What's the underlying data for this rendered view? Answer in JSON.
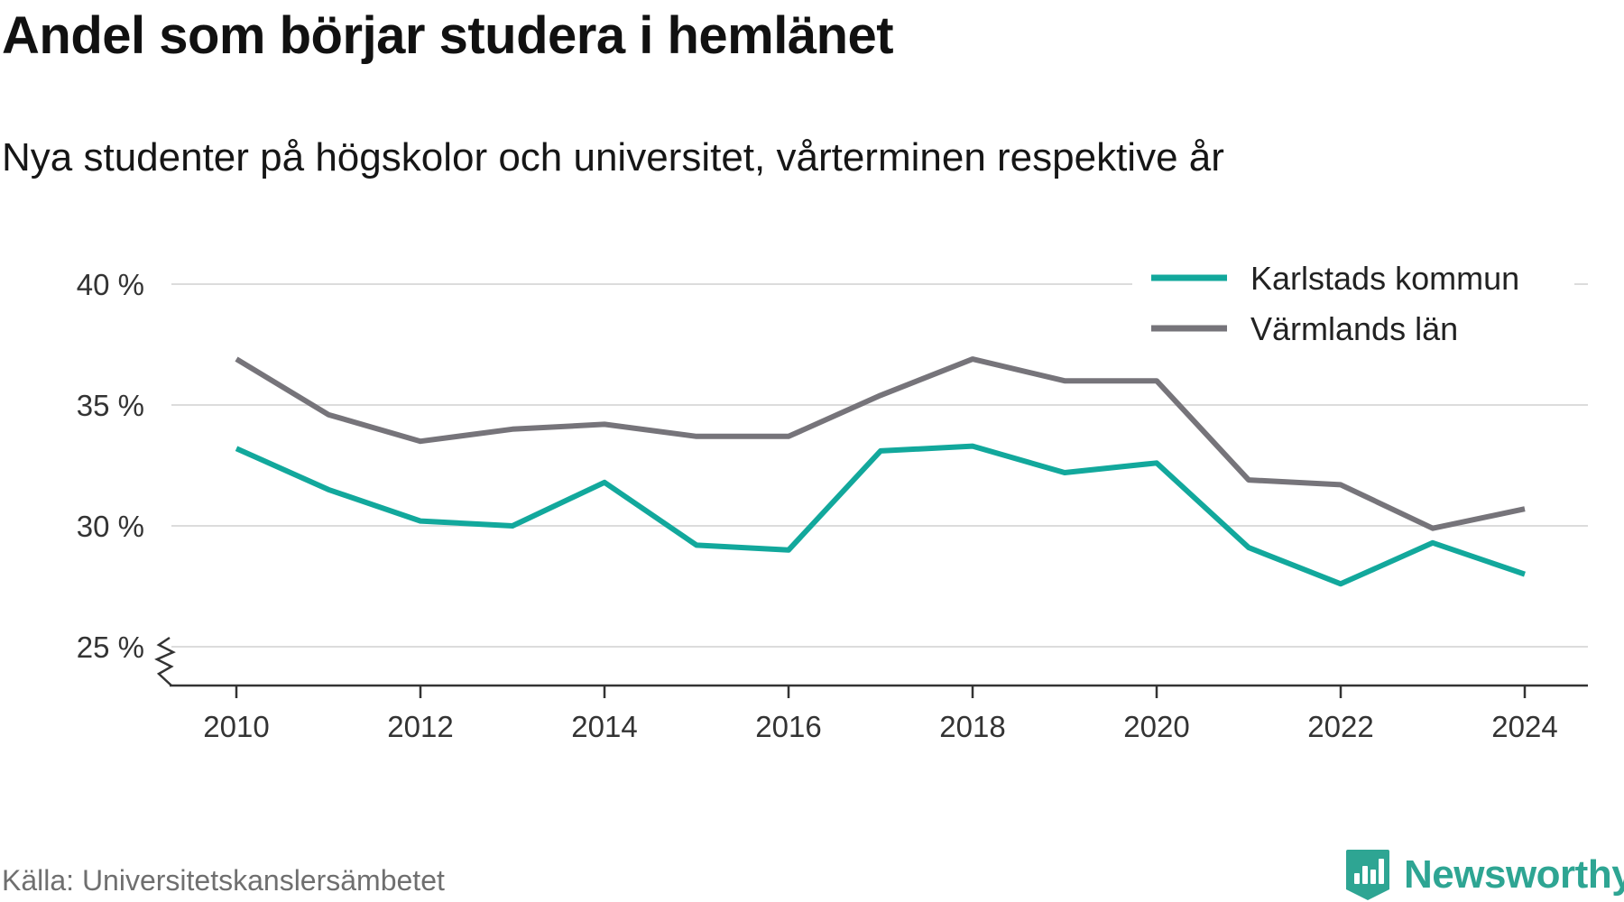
{
  "chart_data": {
    "type": "line",
    "title": "Andel som börjar studera i hemlänet",
    "subtitle": "Nya studenter på högskolor och universitet, vårterminen respektive år",
    "x": [
      2010,
      2011,
      2012,
      2013,
      2014,
      2015,
      2016,
      2017,
      2018,
      2019,
      2020,
      2021,
      2022,
      2023,
      2024
    ],
    "x_ticks": [
      2010,
      2012,
      2014,
      2016,
      2018,
      2020,
      2022,
      2024
    ],
    "y_ticks": [
      25,
      30,
      35,
      40
    ],
    "y_tick_labels": [
      "25 %",
      "30 %",
      "35 %",
      "40 %"
    ],
    "ylim": [
      25,
      40
    ],
    "y_axis_break": true,
    "grid": true,
    "legend_position": "top-right",
    "series": [
      {
        "name": "Karlstads kommun",
        "color": "#12a89c",
        "values": [
          33.2,
          31.5,
          30.2,
          30.0,
          31.8,
          29.2,
          29.0,
          33.1,
          33.3,
          32.2,
          32.6,
          29.1,
          27.6,
          29.3,
          28.0
        ]
      },
      {
        "name": "Värmlands län",
        "color": "#76747a",
        "values": [
          36.9,
          34.6,
          33.5,
          34.0,
          34.2,
          33.7,
          33.7,
          35.4,
          36.9,
          36.0,
          36.0,
          31.9,
          31.7,
          29.9,
          30.7
        ]
      }
    ]
  },
  "source": "Källa: Universitetskanslersämbetet",
  "brand": "Newsworthy",
  "colors": {
    "accent": "#12a89c",
    "secondary": "#76747a",
    "brand": "#2ea593",
    "grid": "#dcdcdc",
    "axis": "#333333"
  }
}
